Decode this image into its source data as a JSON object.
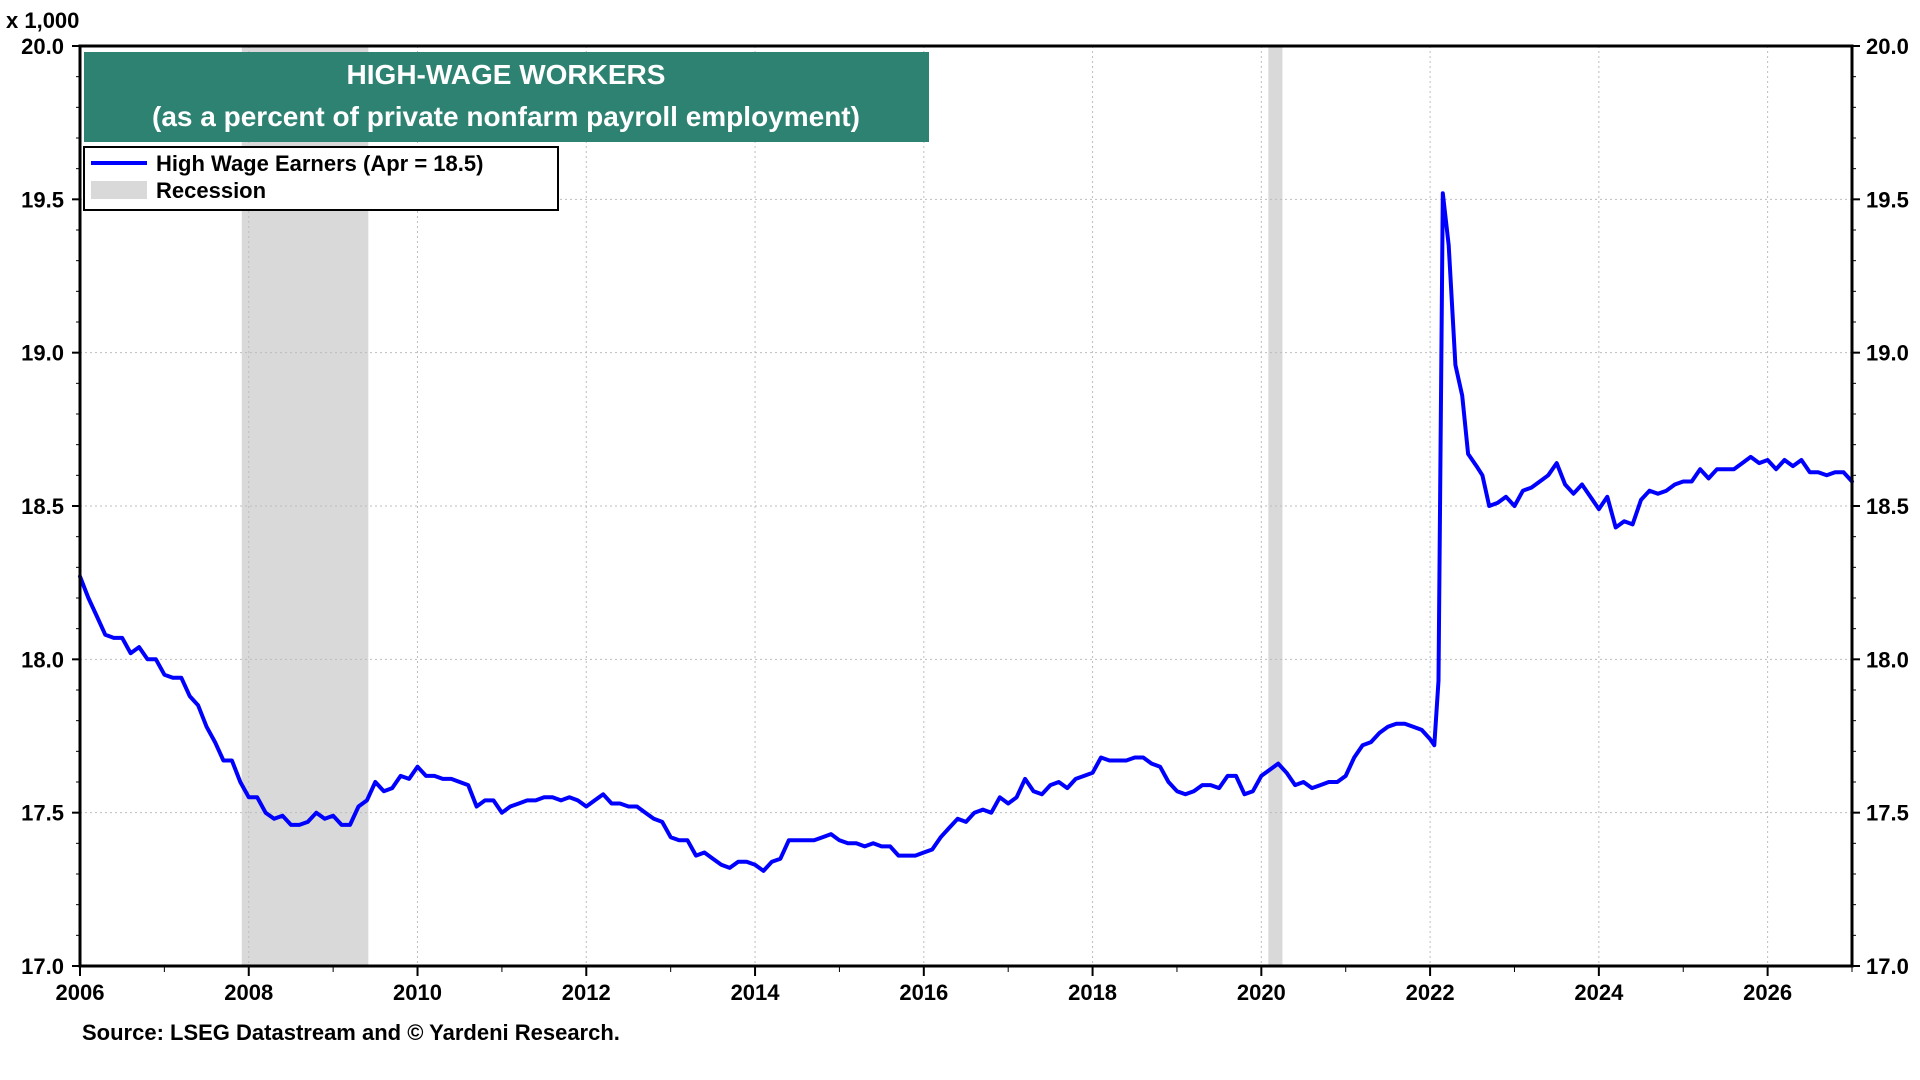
{
  "chart_data": {
    "type": "line",
    "title": "HIGH-WAGE WORKERS",
    "subtitle": "(as a percent of private nonfarm payroll employment)",
    "unit_label": "x 1,000",
    "source": "Source: LSEG Datastream and © Yardeni Research.",
    "y_range": [
      17.0,
      20.0
    ],
    "y_ticks": [
      "17.0",
      "17.5",
      "18.0",
      "18.5",
      "19.0",
      "19.5",
      "20.0"
    ],
    "x_range": [
      2006,
      2027
    ],
    "x_ticks": [
      "2006",
      "2008",
      "2010",
      "2012",
      "2014",
      "2016",
      "2018",
      "2020",
      "2022",
      "2024",
      "2026"
    ],
    "grid": true,
    "legend_position": "top-left",
    "legend": {
      "series_label": "High Wage Earners (Apr = 18.5)",
      "recession_label": "Recession"
    },
    "recessions": [
      {
        "start": 2007.917,
        "end": 2009.417
      },
      {
        "start": 2020.083,
        "end": 2020.25
      }
    ],
    "series": [
      {
        "name": "High Wage Earners (Apr = 18.5)",
        "color": "#0000ff",
        "points": [
          [
            2006.0,
            18.27
          ],
          [
            2006.1,
            18.2
          ],
          [
            2006.2,
            18.14
          ],
          [
            2006.3,
            18.08
          ],
          [
            2006.4,
            18.07
          ],
          [
            2006.5,
            18.07
          ],
          [
            2006.6,
            18.02
          ],
          [
            2006.7,
            18.04
          ],
          [
            2006.8,
            18.0
          ],
          [
            2006.9,
            18.0
          ],
          [
            2007.0,
            17.95
          ],
          [
            2007.1,
            17.94
          ],
          [
            2007.2,
            17.94
          ],
          [
            2007.3,
            17.88
          ],
          [
            2007.4,
            17.85
          ],
          [
            2007.5,
            17.78
          ],
          [
            2007.6,
            17.73
          ],
          [
            2007.7,
            17.67
          ],
          [
            2007.8,
            17.67
          ],
          [
            2007.9,
            17.6
          ],
          [
            2008.0,
            17.55
          ],
          [
            2008.1,
            17.55
          ],
          [
            2008.2,
            17.5
          ],
          [
            2008.3,
            17.48
          ],
          [
            2008.4,
            17.49
          ],
          [
            2008.5,
            17.46
          ],
          [
            2008.6,
            17.46
          ],
          [
            2008.7,
            17.47
          ],
          [
            2008.8,
            17.5
          ],
          [
            2008.9,
            17.48
          ],
          [
            2009.0,
            17.49
          ],
          [
            2009.1,
            17.46
          ],
          [
            2009.2,
            17.46
          ],
          [
            2009.3,
            17.52
          ],
          [
            2009.4,
            17.54
          ],
          [
            2009.5,
            17.6
          ],
          [
            2009.6,
            17.57
          ],
          [
            2009.7,
            17.58
          ],
          [
            2009.8,
            17.62
          ],
          [
            2009.9,
            17.61
          ],
          [
            2010.0,
            17.65
          ],
          [
            2010.1,
            17.62
          ],
          [
            2010.2,
            17.62
          ],
          [
            2010.3,
            17.61
          ],
          [
            2010.4,
            17.61
          ],
          [
            2010.5,
            17.6
          ],
          [
            2010.6,
            17.59
          ],
          [
            2010.7,
            17.52
          ],
          [
            2010.8,
            17.54
          ],
          [
            2010.9,
            17.54
          ],
          [
            2011.0,
            17.5
          ],
          [
            2011.1,
            17.52
          ],
          [
            2011.2,
            17.53
          ],
          [
            2011.3,
            17.54
          ],
          [
            2011.4,
            17.54
          ],
          [
            2011.5,
            17.55
          ],
          [
            2011.6,
            17.55
          ],
          [
            2011.7,
            17.54
          ],
          [
            2011.8,
            17.55
          ],
          [
            2011.9,
            17.54
          ],
          [
            2012.0,
            17.52
          ],
          [
            2012.1,
            17.54
          ],
          [
            2012.2,
            17.56
          ],
          [
            2012.3,
            17.53
          ],
          [
            2012.4,
            17.53
          ],
          [
            2012.5,
            17.52
          ],
          [
            2012.6,
            17.52
          ],
          [
            2012.7,
            17.5
          ],
          [
            2012.8,
            17.48
          ],
          [
            2012.9,
            17.47
          ],
          [
            2013.0,
            17.42
          ],
          [
            2013.1,
            17.41
          ],
          [
            2013.2,
            17.41
          ],
          [
            2013.3,
            17.36
          ],
          [
            2013.4,
            17.37
          ],
          [
            2013.5,
            17.35
          ],
          [
            2013.6,
            17.33
          ],
          [
            2013.7,
            17.32
          ],
          [
            2013.8,
            17.34
          ],
          [
            2013.9,
            17.34
          ],
          [
            2014.0,
            17.33
          ],
          [
            2014.1,
            17.31
          ],
          [
            2014.2,
            17.34
          ],
          [
            2014.3,
            17.35
          ],
          [
            2014.4,
            17.41
          ],
          [
            2014.5,
            17.41
          ],
          [
            2014.6,
            17.41
          ],
          [
            2014.7,
            17.41
          ],
          [
            2014.8,
            17.42
          ],
          [
            2014.9,
            17.43
          ],
          [
            2015.0,
            17.41
          ],
          [
            2015.1,
            17.4
          ],
          [
            2015.2,
            17.4
          ],
          [
            2015.3,
            17.39
          ],
          [
            2015.4,
            17.4
          ],
          [
            2015.5,
            17.39
          ],
          [
            2015.6,
            17.39
          ],
          [
            2015.7,
            17.36
          ],
          [
            2015.8,
            17.36
          ],
          [
            2015.9,
            17.36
          ],
          [
            2016.0,
            17.37
          ],
          [
            2016.1,
            17.38
          ],
          [
            2016.2,
            17.42
          ],
          [
            2016.3,
            17.45
          ],
          [
            2016.4,
            17.48
          ],
          [
            2016.5,
            17.47
          ],
          [
            2016.6,
            17.5
          ],
          [
            2016.7,
            17.51
          ],
          [
            2016.8,
            17.5
          ],
          [
            2016.9,
            17.55
          ],
          [
            2017.0,
            17.53
          ],
          [
            2017.1,
            17.55
          ],
          [
            2017.2,
            17.61
          ],
          [
            2017.3,
            17.57
          ],
          [
            2017.4,
            17.56
          ],
          [
            2017.5,
            17.59
          ],
          [
            2017.6,
            17.6
          ],
          [
            2017.7,
            17.58
          ],
          [
            2017.8,
            17.61
          ],
          [
            2017.9,
            17.62
          ],
          [
            2018.0,
            17.63
          ],
          [
            2018.1,
            17.68
          ],
          [
            2018.2,
            17.67
          ],
          [
            2018.3,
            17.67
          ],
          [
            2018.4,
            17.67
          ],
          [
            2018.5,
            17.68
          ],
          [
            2018.6,
            17.68
          ],
          [
            2018.7,
            17.66
          ],
          [
            2018.8,
            17.65
          ],
          [
            2018.9,
            17.6
          ],
          [
            2019.0,
            17.57
          ],
          [
            2019.1,
            17.56
          ],
          [
            2019.2,
            17.57
          ],
          [
            2019.3,
            17.59
          ],
          [
            2019.4,
            17.59
          ],
          [
            2019.5,
            17.58
          ],
          [
            2019.6,
            17.62
          ],
          [
            2019.7,
            17.62
          ],
          [
            2019.8,
            17.56
          ],
          [
            2019.9,
            17.57
          ],
          [
            2020.0,
            17.62
          ],
          [
            2020.1,
            17.64
          ],
          [
            2020.2,
            17.66
          ],
          [
            2020.3,
            17.63
          ],
          [
            2020.4,
            17.59
          ],
          [
            2020.5,
            17.6
          ],
          [
            2020.6,
            17.58
          ],
          [
            2020.7,
            17.59
          ],
          [
            2020.8,
            17.6
          ],
          [
            2020.9,
            17.6
          ],
          [
            2021.0,
            17.62
          ],
          [
            2021.1,
            17.68
          ],
          [
            2021.2,
            17.72
          ],
          [
            2021.3,
            17.73
          ],
          [
            2021.4,
            17.76
          ],
          [
            2021.5,
            17.78
          ],
          [
            2021.6,
            17.79
          ],
          [
            2021.7,
            17.79
          ],
          [
            2021.8,
            17.78
          ],
          [
            2021.9,
            17.77
          ],
          [
            2022.0,
            17.74
          ],
          [
            2022.05,
            17.72
          ],
          [
            2022.1,
            17.93
          ],
          [
            2022.15,
            19.52
          ],
          [
            2022.22,
            19.35
          ],
          [
            2022.3,
            18.96
          ],
          [
            2022.38,
            18.86
          ],
          [
            2022.45,
            18.67
          ],
          [
            2022.55,
            18.63
          ],
          [
            2022.62,
            18.6
          ],
          [
            2022.7,
            18.5
          ],
          [
            2022.8,
            18.51
          ],
          [
            2022.9,
            18.53
          ],
          [
            2023.0,
            18.5
          ],
          [
            2023.1,
            18.55
          ],
          [
            2023.2,
            18.56
          ],
          [
            2023.3,
            18.58
          ],
          [
            2023.4,
            18.6
          ],
          [
            2023.5,
            18.64
          ],
          [
            2023.6,
            18.57
          ],
          [
            2023.7,
            18.54
          ],
          [
            2023.8,
            18.57
          ],
          [
            2023.9,
            18.53
          ],
          [
            2024.0,
            18.49
          ],
          [
            2024.1,
            18.53
          ],
          [
            2024.2,
            18.43
          ],
          [
            2024.3,
            18.45
          ],
          [
            2024.4,
            18.44
          ],
          [
            2024.5,
            18.52
          ],
          [
            2024.6,
            18.55
          ],
          [
            2024.7,
            18.54
          ],
          [
            2024.8,
            18.55
          ],
          [
            2024.9,
            18.57
          ],
          [
            2025.0,
            18.58
          ],
          [
            2025.1,
            18.58
          ],
          [
            2025.2,
            18.62
          ],
          [
            2025.3,
            18.59
          ],
          [
            2025.4,
            18.62
          ],
          [
            2025.5,
            18.62
          ],
          [
            2025.6,
            18.62
          ],
          [
            2025.7,
            18.64
          ],
          [
            2025.8,
            18.66
          ],
          [
            2025.9,
            18.64
          ],
          [
            2026.0,
            18.65
          ],
          [
            2026.1,
            18.62
          ],
          [
            2026.2,
            18.65
          ],
          [
            2026.3,
            18.63
          ],
          [
            2026.4,
            18.65
          ],
          [
            2026.5,
            18.61
          ],
          [
            2026.6,
            18.61
          ],
          [
            2026.7,
            18.6
          ],
          [
            2026.8,
            18.61
          ],
          [
            2026.9,
            18.61
          ],
          [
            2027.0,
            18.58
          ]
        ]
      }
    ]
  }
}
